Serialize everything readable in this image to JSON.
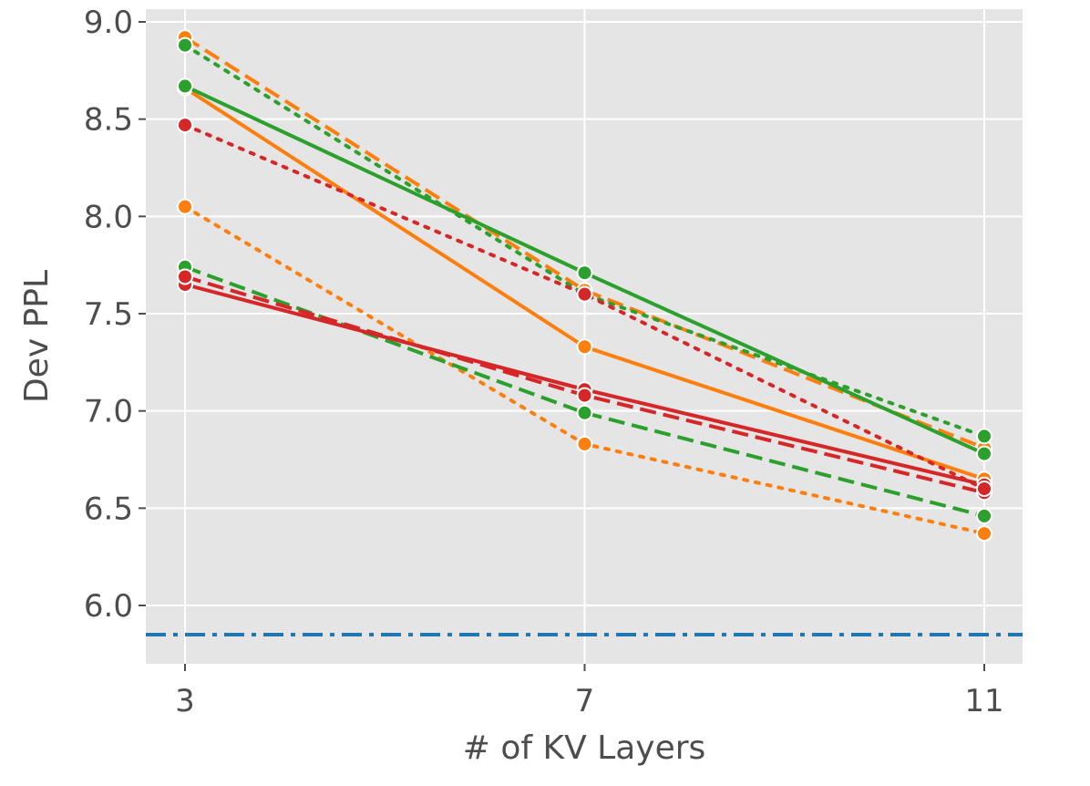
{
  "chart_data": {
    "type": "line",
    "title": "",
    "xlabel": "# of KV Layers",
    "ylabel": "Dev PPL",
    "x": [
      3,
      7,
      11
    ],
    "xticks": [
      "3",
      "7",
      "11"
    ],
    "yticks": [
      "6.0",
      "6.5",
      "7.0",
      "7.5",
      "8.0",
      "8.5",
      "9.0"
    ],
    "ylim": [
      5.7,
      9.1
    ],
    "grid": true,
    "background": "#e5e5e5",
    "series": [
      {
        "name": "orange-solid",
        "color": "#ff7f0e",
        "dash": "solid",
        "values": [
          8.66,
          7.33,
          6.65
        ]
      },
      {
        "name": "orange-dashed",
        "color": "#ff7f0e",
        "dash": "dashed",
        "values": [
          8.92,
          7.62,
          6.81
        ]
      },
      {
        "name": "orange-dotted",
        "color": "#ff7f0e",
        "dash": "dotted",
        "values": [
          8.05,
          6.83,
          6.37
        ]
      },
      {
        "name": "green-solid",
        "color": "#2ca02c",
        "dash": "solid",
        "values": [
          8.67,
          7.71,
          6.78
        ]
      },
      {
        "name": "green-dashed",
        "color": "#2ca02c",
        "dash": "dashed",
        "values": [
          7.74,
          6.99,
          6.46
        ]
      },
      {
        "name": "green-dotted",
        "color": "#2ca02c",
        "dash": "dotted",
        "values": [
          8.88,
          7.6,
          6.87
        ]
      },
      {
        "name": "red-solid",
        "color": "#d62728",
        "dash": "solid",
        "values": [
          7.65,
          7.11,
          6.62
        ]
      },
      {
        "name": "red-dashed",
        "color": "#d62728",
        "dash": "dashed",
        "values": [
          7.69,
          7.08,
          6.58
        ]
      },
      {
        "name": "red-dotted",
        "color": "#d62728",
        "dash": "dotted",
        "values": [
          8.47,
          7.6,
          6.6
        ]
      }
    ],
    "baseline": {
      "name": "baseline",
      "color": "#1f77b4",
      "dash": "dashdot",
      "value": 5.85
    }
  }
}
